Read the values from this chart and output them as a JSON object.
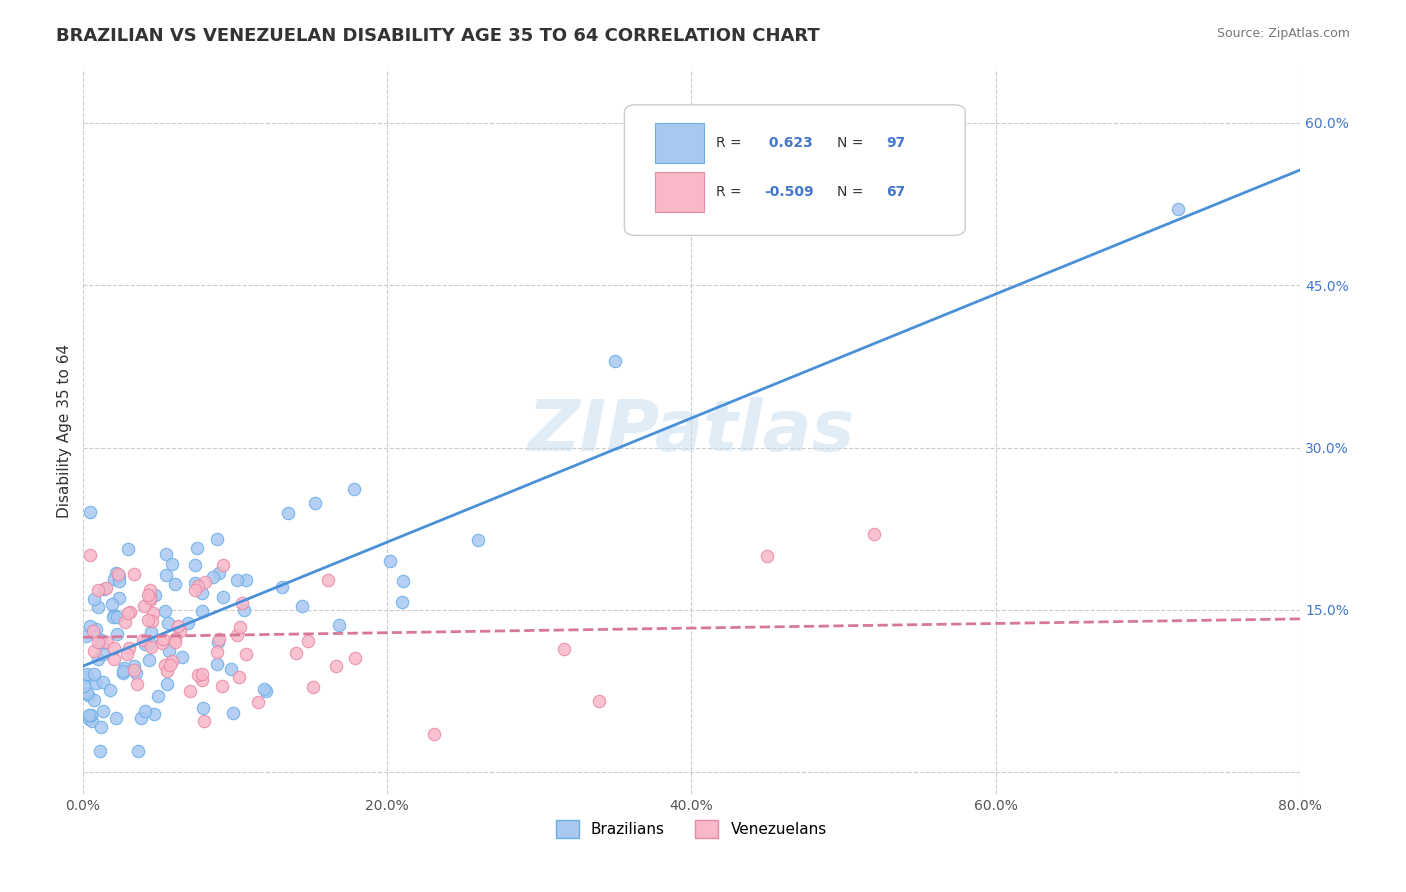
{
  "title": "BRAZILIAN VS VENEZUELAN DISABILITY AGE 35 TO 64 CORRELATION CHART",
  "source": "Source: ZipAtlas.com",
  "xlabel": "",
  "ylabel": "Disability Age 35 to 64",
  "xlim": [
    0.0,
    0.8
  ],
  "ylim": [
    -0.02,
    0.65
  ],
  "x_ticks": [
    0.0,
    0.2,
    0.4,
    0.6,
    0.8
  ],
  "x_tick_labels": [
    "0.0%",
    "",
    "",
    "",
    "80.0%"
  ],
  "y_ticks": [
    0.0,
    0.15,
    0.3,
    0.45,
    0.6
  ],
  "y_tick_labels": [
    "",
    "15.0%",
    "30.0%",
    "45.0%",
    "60.0%"
  ],
  "watermark": "ZIPatlas",
  "brazil_color": "#a8c8f0",
  "brazil_edge": "#6aaee8",
  "venezuela_color": "#f8b8c8",
  "venezuela_edge": "#e888a8",
  "brazil_R": 0.623,
  "brazil_N": 97,
  "venezuela_R": -0.509,
  "venezuela_N": 67,
  "brazil_line_color": "#4a90d8",
  "venezuela_line_color": "#d87898",
  "grid_color": "#cccccc",
  "brazil_seed": 42,
  "venezuela_seed": 123,
  "background_color": "#ffffff",
  "legend_R_color": "#4477cc",
  "legend_N_color": "#4477cc"
}
